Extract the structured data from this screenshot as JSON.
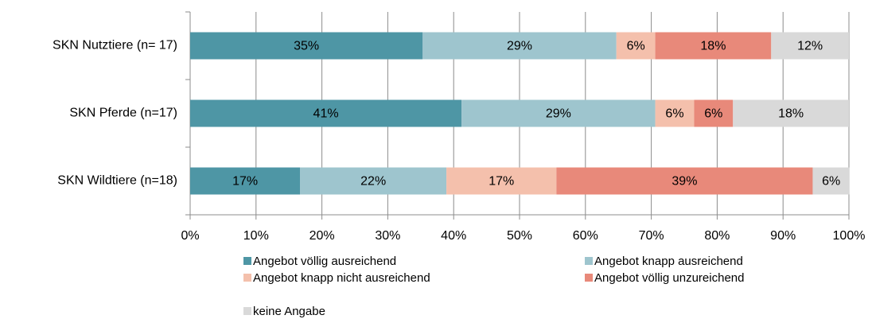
{
  "chart_data": {
    "type": "stacked_barh",
    "categories": [
      "SKN Nutztiere (n= 17)",
      "SKN Pferde (n=17)",
      "SKN Wildtiere (n=18)"
    ],
    "series": [
      {
        "name": "Angebot völlig ausreichend",
        "color": "#4e96a5",
        "values": [
          35.3,
          41.2,
          16.7
        ],
        "value_labels": [
          "35%",
          "41%",
          "17%"
        ]
      },
      {
        "name": "Angebot knapp ausreichend",
        "color": "#9ec5ce",
        "values": [
          29.4,
          29.4,
          22.2
        ],
        "value_labels": [
          "29%",
          "29%",
          "22%"
        ]
      },
      {
        "name": "Angebot knapp nicht ausreichend",
        "color": "#f4c0ac",
        "values": [
          5.9,
          5.9,
          16.7
        ],
        "value_labels": [
          "6%",
          "6%",
          "17%"
        ]
      },
      {
        "name": "Angebot völlig unzureichend",
        "color": "#e8897a",
        "values": [
          17.6,
          5.9,
          38.9
        ],
        "value_labels": [
          "18%",
          "6%",
          "39%"
        ]
      },
      {
        "name": "keine Angabe",
        "color": "#d9d9d9",
        "values": [
          11.8,
          17.6,
          5.6
        ],
        "value_labels": [
          "12%",
          "18%",
          "6%"
        ]
      }
    ],
    "xlim": [
      0,
      100
    ],
    "xticks": [
      {
        "value": 0,
        "label": "0%"
      },
      {
        "value": 10,
        "label": "10%"
      },
      {
        "value": 20,
        "label": "20%"
      },
      {
        "value": 30,
        "label": "30%"
      },
      {
        "value": 40,
        "label": "40%"
      },
      {
        "value": 50,
        "label": "50%"
      },
      {
        "value": 60,
        "label": "60%"
      },
      {
        "value": 70,
        "label": "70%"
      },
      {
        "value": 80,
        "label": "80%"
      },
      {
        "value": 90,
        "label": "90%"
      },
      {
        "value": 100,
        "label": "100%"
      }
    ],
    "grid": true,
    "legend": "bottom"
  }
}
